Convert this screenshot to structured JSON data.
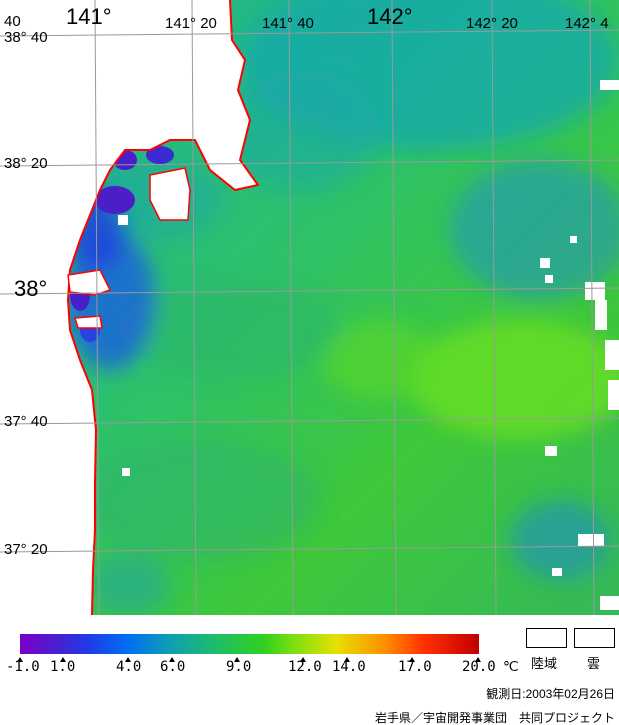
{
  "map": {
    "lat_labels": [
      "38° 40",
      "38° 20",
      "38°",
      "37° 40",
      "37° 20"
    ],
    "lon_labels": [
      "141°",
      "141° 20",
      "141° 40",
      "142°",
      "142° 20",
      "142° 4"
    ],
    "corner_label": "40"
  },
  "legend": {
    "ticks": [
      "-1.0",
      "1.0",
      "4.0",
      "6.0",
      "9.0",
      "12.0",
      "14.0",
      "17.0",
      "20.0"
    ],
    "unit": "℃",
    "land": "陸域",
    "cloud": "雲",
    "colors": {
      "coast": "#ff0000",
      "grid": "#9a9a9a",
      "min": "#7a00c8",
      "max": "#c00000"
    }
  },
  "footer": {
    "date": "観測日:2003年02月26日",
    "credit": "岩手県／宇宙開発事業団　共同プロジェクト"
  }
}
